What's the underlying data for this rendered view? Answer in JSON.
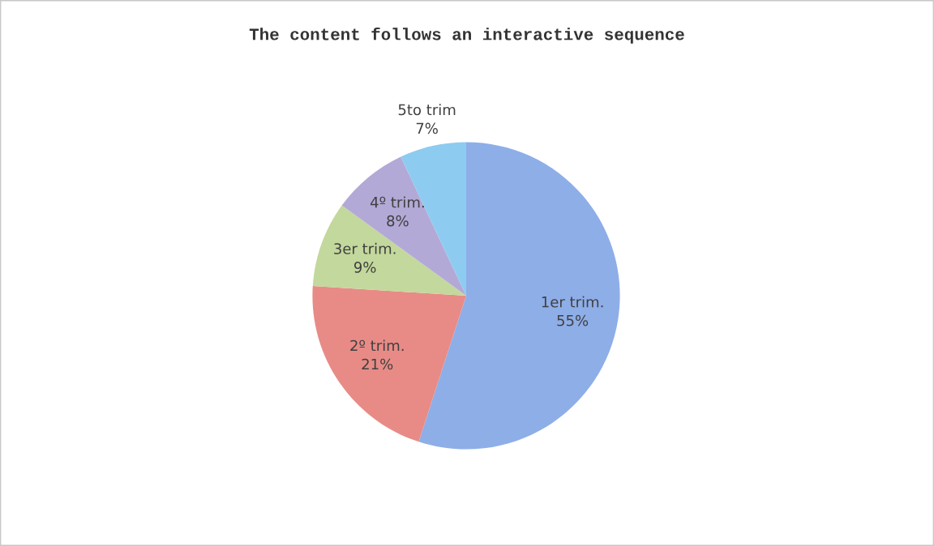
{
  "chart_data": {
    "type": "pie",
    "title": "The content follows an interactive sequence",
    "categories": [
      "1er trim.",
      "2º trim.",
      "3er trim.",
      "4º trim.",
      "5to trim"
    ],
    "values": [
      55,
      21,
      9,
      8,
      7
    ],
    "value_labels": [
      "55%",
      "21%",
      "9%",
      "8%",
      "7%"
    ],
    "colors": [
      "#8eaee8",
      "#e88b86",
      "#c3d89c",
      "#b3a9d6",
      "#8ecbf0"
    ]
  }
}
